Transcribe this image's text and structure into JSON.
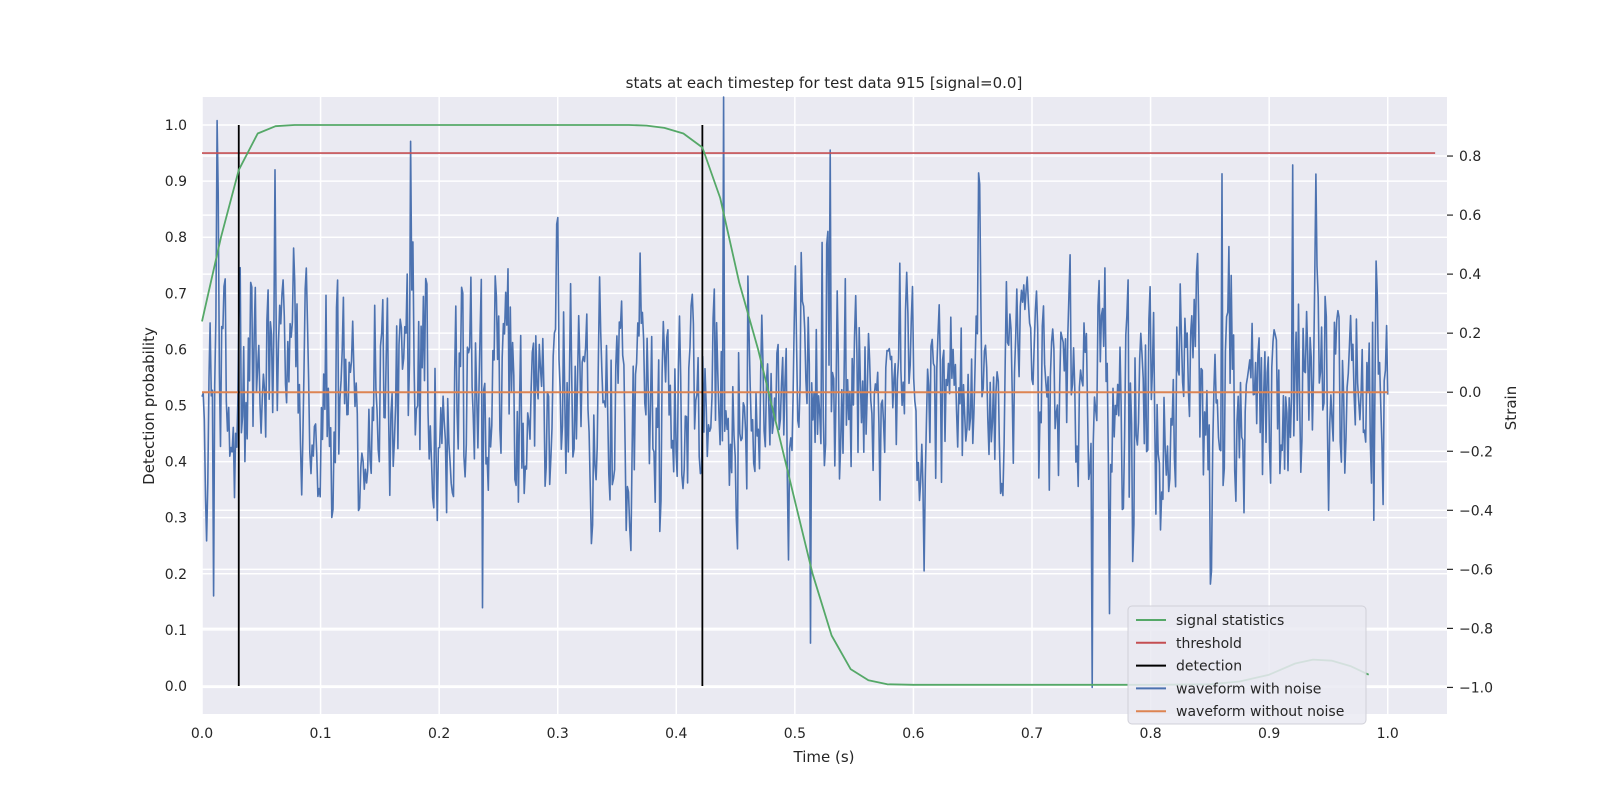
{
  "chart_data": {
    "type": "line",
    "title": "stats at each timestep for test data 915 [signal=0.0]",
    "xlabel": "Time (s)",
    "ylabel_left": "Detection probability",
    "ylabel_right": "Strain",
    "xlim": [
      0.0,
      1.05
    ],
    "ylim_left": [
      -0.05,
      1.05
    ],
    "ylim_right": [
      -1.09,
      1.0
    ],
    "x_ticks": [
      0.0,
      0.1,
      0.2,
      0.3,
      0.4,
      0.5,
      0.6,
      0.7,
      0.8,
      0.9,
      1.0
    ],
    "x_tick_labels": [
      "0.0",
      "0.1",
      "0.2",
      "0.3",
      "0.4",
      "0.5",
      "0.6",
      "0.7",
      "0.8",
      "0.9",
      "1.0"
    ],
    "y_left_ticks": [
      0.0,
      0.1,
      0.2,
      0.3,
      0.4,
      0.5,
      0.6,
      0.7,
      0.8,
      0.9,
      1.0
    ],
    "y_left_tick_labels": [
      "0.0",
      "0.1",
      "0.2",
      "0.3",
      "0.4",
      "0.5",
      "0.6",
      "0.7",
      "0.8",
      "0.9",
      "1.0"
    ],
    "y_right_ticks": [
      -1.0,
      -0.8,
      -0.6,
      -0.4,
      -0.2,
      0.0,
      0.2,
      0.4,
      0.6,
      0.8
    ],
    "y_right_tick_labels": [
      "−1.0",
      "−0.8",
      "−0.6",
      "−0.4",
      "−0.2",
      "0.0",
      "0.2",
      "0.4",
      "0.6",
      "0.8"
    ],
    "grid": true,
    "background": "#EAEAF2",
    "legend_position": "lower right",
    "series": [
      {
        "name": "signal statistics",
        "color": "#55A868",
        "axis": "left",
        "x": [
          0.0,
          0.016,
          0.031,
          0.047,
          0.062,
          0.078,
          0.1,
          0.2,
          0.3,
          0.36,
          0.375,
          0.39,
          0.406,
          0.422,
          0.437,
          0.453,
          0.469,
          0.484,
          0.5,
          0.515,
          0.531,
          0.547,
          0.562,
          0.578,
          0.6,
          0.7,
          0.8,
          0.85,
          0.875,
          0.9,
          0.922,
          0.937,
          0.953,
          0.969,
          0.984
        ],
        "y": [
          0.65,
          0.8,
          0.92,
          0.985,
          0.998,
          1.0,
          1.0,
          1.0,
          1.0,
          1.0,
          0.999,
          0.995,
          0.985,
          0.96,
          0.87,
          0.72,
          0.6,
          0.47,
          0.33,
          0.2,
          0.09,
          0.03,
          0.01,
          0.003,
          0.002,
          0.002,
          0.002,
          0.003,
          0.008,
          0.02,
          0.04,
          0.047,
          0.045,
          0.035,
          0.02
        ]
      },
      {
        "name": "threshold",
        "color": "#C44E52",
        "axis": "left",
        "x": [
          0.0,
          1.04
        ],
        "y": [
          0.95,
          0.95
        ]
      },
      {
        "name": "detection",
        "color": "#000000",
        "axis": "left",
        "segments": [
          {
            "x": 0.031,
            "y": [
              0.0,
              1.0
            ]
          },
          {
            "x": 0.422,
            "y": [
              0.0,
              1.0
            ]
          }
        ]
      },
      {
        "name": "waveform with noise",
        "color": "#4C72B0",
        "axis": "right",
        "x_start": 0.0,
        "x_end": 1.0,
        "n_points": 1024,
        "max": 1.0,
        "min": -1.0,
        "approx_range": [
          -0.7,
          0.9
        ]
      },
      {
        "name": "waveform without noise",
        "color": "#DD8452",
        "axis": "right",
        "x": [
          0.0,
          1.0
        ],
        "y": [
          0.0,
          0.0
        ]
      }
    ]
  }
}
